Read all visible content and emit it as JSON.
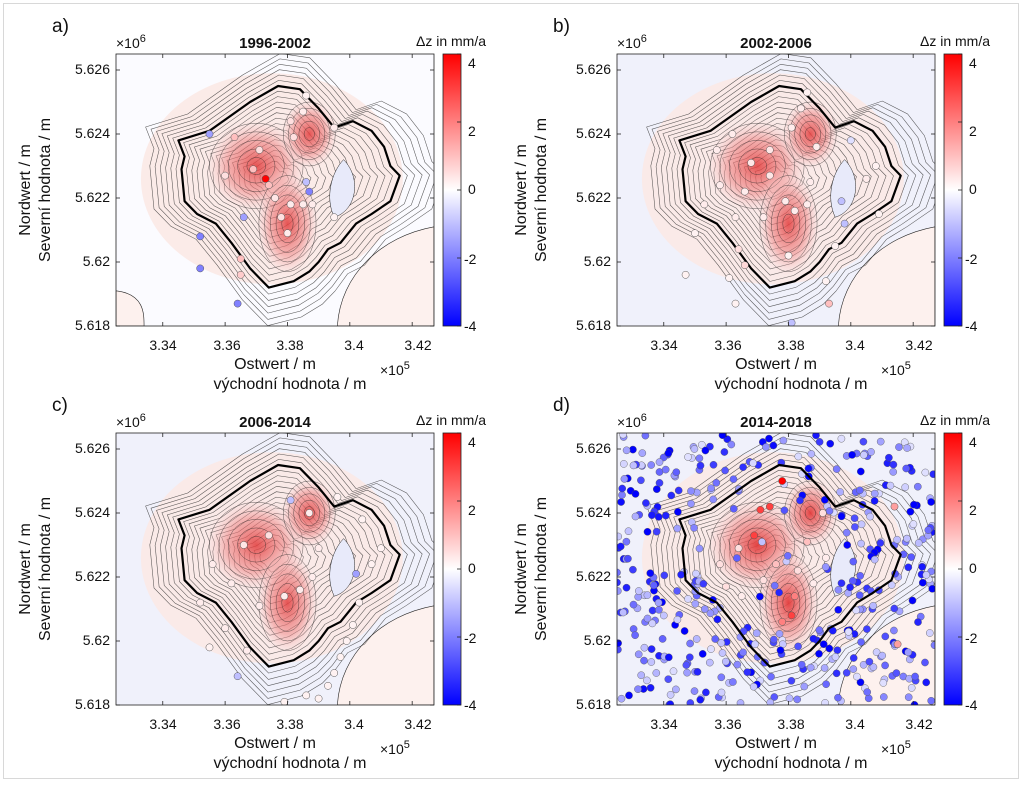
{
  "figure": {
    "axis_labels": {
      "y_de": "Nordwert / m",
      "y_cz": "Severní hodnota / m",
      "x_de": "Ostwert / m",
      "x_cz": "východní hodnota / m"
    },
    "x_multiplier": "×10",
    "x_exponent": "5",
    "y_multiplier": "×10",
    "y_exponent": "6",
    "colorbar_label": "Δz in mm/a"
  },
  "colors": {
    "positive": "#ff0000",
    "neutral": "#ffffff",
    "negative": "#0000ff",
    "contour": "#222222",
    "boundary": "#000000"
  },
  "chart_data": [
    {
      "panel": "a)",
      "title": "1996-2002",
      "type": "contour",
      "x_ticks": [
        "3.34",
        "3.36",
        "3.38",
        "3.4",
        "3.42"
      ],
      "y_ticks": [
        "5.618",
        "5.62",
        "5.622",
        "5.624",
        "5.626"
      ],
      "xlim": [
        3.325,
        3.427
      ],
      "ylim": [
        5.618,
        5.6265
      ],
      "colorbar_ticks": [
        "4",
        "2",
        "0",
        "-2",
        "-4"
      ],
      "clim": [
        -4,
        4
      ],
      "points": [
        {
          "x": 3.373,
          "y": 5.6226,
          "v": 4
        },
        {
          "x": 3.369,
          "y": 5.6229,
          "v": 1
        },
        {
          "x": 3.374,
          "y": 5.6224,
          "v": 1
        },
        {
          "x": 3.386,
          "y": 5.6225,
          "v": -1
        },
        {
          "x": 3.387,
          "y": 5.6222,
          "v": -2
        },
        {
          "x": 3.376,
          "y": 5.622,
          "v": 0.4
        },
        {
          "x": 3.381,
          "y": 5.6218,
          "v": 0.3
        },
        {
          "x": 3.385,
          "y": 5.6218,
          "v": 0.3
        },
        {
          "x": 3.388,
          "y": 5.6218,
          "v": 0.3
        },
        {
          "x": 3.395,
          "y": 5.6214,
          "v": 0.2
        },
        {
          "x": 3.378,
          "y": 5.6214,
          "v": 0.5
        },
        {
          "x": 3.366,
          "y": 5.6214,
          "v": -1.5
        },
        {
          "x": 3.352,
          "y": 5.6208,
          "v": -2
        },
        {
          "x": 3.352,
          "y": 5.6198,
          "v": -2
        },
        {
          "x": 3.365,
          "y": 5.6201,
          "v": 1
        },
        {
          "x": 3.365,
          "y": 5.6196,
          "v": 0.8
        },
        {
          "x": 3.364,
          "y": 5.6187,
          "v": -2
        },
        {
          "x": 3.38,
          "y": 5.6209,
          "v": 0.3
        },
        {
          "x": 3.355,
          "y": 5.624,
          "v": -1.5
        },
        {
          "x": 3.363,
          "y": 5.6239,
          "v": 1
        },
        {
          "x": 3.381,
          "y": 5.6244,
          "v": 0.5
        },
        {
          "x": 3.385,
          "y": 5.6247,
          "v": 0.3
        },
        {
          "x": 3.386,
          "y": 5.6252,
          "v": 0.2
        },
        {
          "x": 3.382,
          "y": 5.6239,
          "v": 0.5
        },
        {
          "x": 3.371,
          "y": 5.6235,
          "v": 0.5
        },
        {
          "x": 3.36,
          "y": 5.6227,
          "v": 0.5
        },
        {
          "x": 3.395,
          "y": 5.6242,
          "v": 0.3
        }
      ]
    },
    {
      "panel": "b)",
      "title": "2002-2006",
      "type": "contour",
      "x_ticks": [
        "3.34",
        "3.36",
        "3.38",
        "3.4",
        "3.42"
      ],
      "y_ticks": [
        "5.618",
        "5.62",
        "5.622",
        "5.624",
        "5.626"
      ],
      "xlim": [
        3.325,
        3.427
      ],
      "ylim": [
        5.618,
        5.6265
      ],
      "colorbar_ticks": [
        "4",
        "2",
        "0",
        "-2",
        "-4"
      ],
      "clim": [
        -4,
        4
      ],
      "points": [
        {
          "x": 3.374,
          "y": 5.6227,
          "v": 0.4
        },
        {
          "x": 3.368,
          "y": 5.6231,
          "v": 0.4
        },
        {
          "x": 3.374,
          "y": 5.6235,
          "v": 0.4
        },
        {
          "x": 3.381,
          "y": 5.6242,
          "v": 0.3
        },
        {
          "x": 3.384,
          "y": 5.6248,
          "v": 0.3
        },
        {
          "x": 3.386,
          "y": 5.6253,
          "v": 0.2
        },
        {
          "x": 3.389,
          "y": 5.6236,
          "v": 0.3
        },
        {
          "x": 3.387,
          "y": 5.6225,
          "v": 0.3
        },
        {
          "x": 3.386,
          "y": 5.6218,
          "v": 0.3
        },
        {
          "x": 3.379,
          "y": 5.6219,
          "v": 0.3
        },
        {
          "x": 3.382,
          "y": 5.6216,
          "v": 0.3
        },
        {
          "x": 3.372,
          "y": 5.6214,
          "v": 0.3
        },
        {
          "x": 3.366,
          "y": 5.6222,
          "v": 0.3
        },
        {
          "x": 3.358,
          "y": 5.6224,
          "v": 0.3
        },
        {
          "x": 3.353,
          "y": 5.6218,
          "v": 0.3
        },
        {
          "x": 3.363,
          "y": 5.6214,
          "v": 0.3
        },
        {
          "x": 3.364,
          "y": 5.6204,
          "v": 0.5
        },
        {
          "x": 3.366,
          "y": 5.6199,
          "v": 0.6
        },
        {
          "x": 3.35,
          "y": 5.6209,
          "v": 0.2
        },
        {
          "x": 3.347,
          "y": 5.6196,
          "v": 0.2
        },
        {
          "x": 3.361,
          "y": 5.6195,
          "v": 0.2
        },
        {
          "x": 3.363,
          "y": 5.6187,
          "v": 0.2
        },
        {
          "x": 3.38,
          "y": 5.6202,
          "v": 0.2
        },
        {
          "x": 3.381,
          "y": 5.6181,
          "v": -1
        },
        {
          "x": 3.393,
          "y": 5.6187,
          "v": 1
        },
        {
          "x": 3.392,
          "y": 5.6194,
          "v": 0.2
        },
        {
          "x": 3.395,
          "y": 5.6205,
          "v": 0.2
        },
        {
          "x": 3.398,
          "y": 5.6212,
          "v": -1
        },
        {
          "x": 3.397,
          "y": 5.6219,
          "v": -1
        },
        {
          "x": 3.405,
          "y": 5.6226,
          "v": 0.3
        },
        {
          "x": 3.408,
          "y": 5.623,
          "v": 0.2
        },
        {
          "x": 3.409,
          "y": 5.6215,
          "v": 0.2
        },
        {
          "x": 3.4,
          "y": 5.6238,
          "v": -0.5
        },
        {
          "x": 3.362,
          "y": 5.624,
          "v": 0.3
        },
        {
          "x": 3.357,
          "y": 5.6235,
          "v": 0.3
        }
      ]
    },
    {
      "panel": "c)",
      "title": "2006-2014",
      "type": "contour",
      "x_ticks": [
        "3.34",
        "3.36",
        "3.38",
        "3.4",
        "3.42"
      ],
      "y_ticks": [
        "5.618",
        "5.62",
        "5.622",
        "5.624",
        "5.626"
      ],
      "xlim": [
        3.325,
        3.427
      ],
      "ylim": [
        5.618,
        5.6265
      ],
      "colorbar_ticks": [
        "4",
        "2",
        "0",
        "-2",
        "-4"
      ],
      "clim": [
        -4,
        4
      ],
      "points": [
        {
          "x": 3.374,
          "y": 5.6233,
          "v": 0.5
        },
        {
          "x": 3.366,
          "y": 5.623,
          "v": 0.4
        },
        {
          "x": 3.381,
          "y": 5.6244,
          "v": -1
        },
        {
          "x": 3.387,
          "y": 5.624,
          "v": 0.3
        },
        {
          "x": 3.39,
          "y": 5.6229,
          "v": 0.3
        },
        {
          "x": 3.388,
          "y": 5.622,
          "v": 0.3
        },
        {
          "x": 3.384,
          "y": 5.6216,
          "v": 0.3
        },
        {
          "x": 3.379,
          "y": 5.6214,
          "v": 0.3
        },
        {
          "x": 3.371,
          "y": 5.6211,
          "v": 0.3
        },
        {
          "x": 3.362,
          "y": 5.6218,
          "v": 0.3
        },
        {
          "x": 3.356,
          "y": 5.6224,
          "v": 0.3
        },
        {
          "x": 3.352,
          "y": 5.6212,
          "v": 0.3
        },
        {
          "x": 3.36,
          "y": 5.6204,
          "v": 0.3
        },
        {
          "x": 3.367,
          "y": 5.6197,
          "v": 0.3
        },
        {
          "x": 3.364,
          "y": 5.6189,
          "v": -1
        },
        {
          "x": 3.355,
          "y": 5.6198,
          "v": 0.2
        },
        {
          "x": 3.393,
          "y": 5.6186,
          "v": 0.2
        },
        {
          "x": 3.39,
          "y": 5.6182,
          "v": 0.2
        },
        {
          "x": 3.386,
          "y": 5.6183,
          "v": 0.2
        },
        {
          "x": 3.395,
          "y": 5.619,
          "v": 0.2
        },
        {
          "x": 3.397,
          "y": 5.6195,
          "v": 0.2
        },
        {
          "x": 3.399,
          "y": 5.62,
          "v": 0.2
        },
        {
          "x": 3.401,
          "y": 5.6205,
          "v": 0.2
        },
        {
          "x": 3.403,
          "y": 5.6212,
          "v": 0.2
        },
        {
          "x": 3.402,
          "y": 5.6221,
          "v": -1.5
        },
        {
          "x": 3.407,
          "y": 5.6224,
          "v": 0.2
        },
        {
          "x": 3.41,
          "y": 5.6229,
          "v": 0.2
        },
        {
          "x": 3.404,
          "y": 5.6238,
          "v": 0.2
        },
        {
          "x": 3.396,
          "y": 5.6245,
          "v": 0.2
        },
        {
          "x": 3.379,
          "y": 5.6181,
          "v": 0.2
        }
      ]
    },
    {
      "panel": "d)",
      "title": "2014-2018",
      "type": "contour",
      "x_ticks": [
        "3.34",
        "3.36",
        "3.38",
        "3.4",
        "3.42"
      ],
      "y_ticks": [
        "5.618",
        "5.62",
        "5.622",
        "5.624",
        "5.626"
      ],
      "xlim": [
        3.325,
        3.427
      ],
      "ylim": [
        5.618,
        5.6265
      ],
      "colorbar_ticks": [
        "4",
        "2",
        "0",
        "-2",
        "-4"
      ],
      "clim": [
        -4,
        4
      ],
      "points": [
        {
          "x": 3.378,
          "y": 5.625,
          "v": 4
        },
        {
          "x": 3.371,
          "y": 5.6241,
          "v": 3
        },
        {
          "x": 3.374,
          "y": 5.6242,
          "v": 3
        },
        {
          "x": 3.369,
          "y": 5.6233,
          "v": 3
        },
        {
          "x": 3.381,
          "y": 5.6208,
          "v": 3
        },
        {
          "x": 3.378,
          "y": 5.6206,
          "v": 2
        },
        {
          "x": 3.382,
          "y": 5.6214,
          "v": 2
        },
        {
          "x": 3.386,
          "y": 5.6231,
          "v": 1
        },
        {
          "x": 3.391,
          "y": 5.624,
          "v": 0.5
        },
        {
          "x": 3.364,
          "y": 5.6229,
          "v": 0.5
        },
        {
          "x": 3.358,
          "y": 5.6224,
          "v": 0.5
        },
        {
          "x": 3.36,
          "y": 5.6217,
          "v": 0.5
        },
        {
          "x": 3.365,
          "y": 5.6214,
          "v": 0.3
        },
        {
          "x": 3.372,
          "y": 5.6219,
          "v": 0.5
        },
        {
          "x": 3.376,
          "y": 5.6224,
          "v": 1
        },
        {
          "x": 3.383,
          "y": 5.6222,
          "v": 0.5
        },
        {
          "x": 3.388,
          "y": 5.6218,
          "v": 0.3
        },
        {
          "x": 3.392,
          "y": 5.6226,
          "v": 0.3
        },
        {
          "x": 3.414,
          "y": 5.6242,
          "v": 1.5
        },
        {
          "x": 3.415,
          "y": 5.6199,
          "v": 1.5
        },
        {
          "x": 3.418,
          "y": 5.6232,
          "v": -1
        }
      ],
      "negative_scatter": true
    }
  ]
}
